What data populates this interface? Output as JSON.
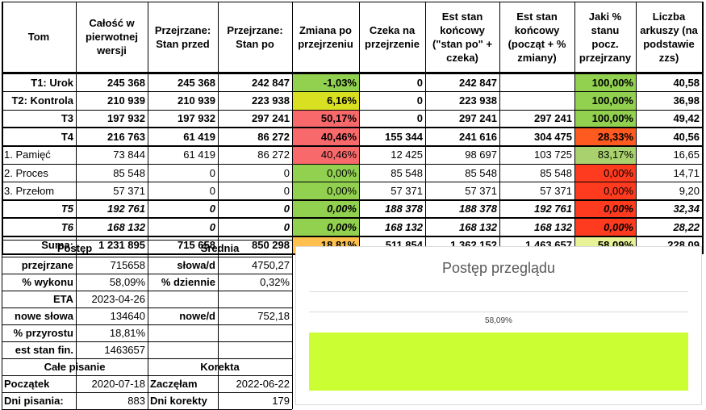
{
  "headers": [
    "Tom",
    "Całość w pierwotnej wersji",
    "Przejrzane: Stan przed",
    "Przejrzane: Stan po",
    "Zmiana po przejrzeniu",
    "Czeka na przejrzenie",
    "Est stan końcowy (\"stan po\" + czeka)",
    "Est stan końcowy (począt + % zmiany)",
    "Jaki % stanu pocz. przejrzany",
    "Liczba arkuszy (na podstawie zzs)"
  ],
  "rows": [
    {
      "cells": [
        "T1: Urok",
        "245 368",
        "245 368",
        "242 847",
        "-1,03%",
        "0",
        "242 847",
        "",
        "100,00%",
        "40,58"
      ],
      "style": "b",
      "colors": [
        "#92d050",
        "#92d050"
      ]
    },
    {
      "cells": [
        "T2: Kontrola",
        "210 939",
        "210 939",
        "223 938",
        "6,16%",
        "0",
        "223 938",
        "",
        "100,00%",
        "36,98"
      ],
      "style": "b",
      "colors": [
        "#d9e021",
        "#92d050"
      ]
    },
    {
      "cells": [
        "T3",
        "197 932",
        "197 932",
        "297 241",
        "50,17%",
        "0",
        "297 241",
        "297 241",
        "100,00%",
        "49,42"
      ],
      "style": "b",
      "colors": [
        "#f8696b",
        "#92d050"
      ]
    },
    {
      "cells": [
        "T4",
        "216 763",
        "61 419",
        "86 272",
        "40,46%",
        "155 344",
        "241 616",
        "304 475",
        "28,33%",
        "40,56"
      ],
      "style": "b",
      "colors": [
        "#f8696b",
        "#ff5a1f"
      ]
    },
    {
      "cells": [
        "1. Pamięć",
        "73 844",
        "61 419",
        "86 272",
        "40,46%",
        "12 425",
        "98 697",
        "103 725",
        "83,17%",
        "16,65"
      ],
      "style": "n",
      "colors": [
        "#f8696b",
        "#a9d16e"
      ]
    },
    {
      "cells": [
        "2. Proces",
        "85 548",
        "0",
        "0",
        "0,00%",
        "85 548",
        "85 548",
        "85 548",
        "0,00%",
        "14,71"
      ],
      "style": "n",
      "colors": [
        "#92d050",
        "#ff3b1f"
      ]
    },
    {
      "cells": [
        "3. Przełom",
        "57 371",
        "0",
        "0",
        "0,00%",
        "57 371",
        "57 371",
        "57 371",
        "0,00%",
        "9,20"
      ],
      "style": "n",
      "colors": [
        "#92d050",
        "#ff3b1f"
      ]
    },
    {
      "cells": [
        "T5",
        "192 761",
        "0",
        "0",
        "0,00%",
        "188 378",
        "188 378",
        "192 761",
        "0,00%",
        "32,34"
      ],
      "style": "bi",
      "colors": [
        "#92d050",
        "#ff3b1f"
      ]
    },
    {
      "cells": [
        "T6",
        "168 132",
        "0",
        "0",
        "0,00%",
        "168 132",
        "168 132",
        "168 132",
        "0,00%",
        "28,22"
      ],
      "style": "bi",
      "colors": [
        "#92d050",
        "#ff3b1f"
      ]
    },
    {
      "cells": [
        "Suma:",
        "1 231 895",
        "715 658",
        "850 298",
        "18,81%",
        "511 854",
        "1 362 152",
        "1 463 657",
        "58,09%",
        "228,09"
      ],
      "style": "b",
      "colors": [
        "#ffc04d",
        "#e8f296"
      ]
    }
  ],
  "progress": {
    "title": "Postęp",
    "rows": [
      {
        "label": "przejrzane",
        "value": "715658"
      },
      {
        "label": "% wykonu",
        "value": "58,09%"
      },
      {
        "label": "ETA",
        "value": "2023-04-26"
      },
      {
        "label": "nowe słowa",
        "value": "134640"
      },
      {
        "label": "% przyrostu",
        "value": "18,81%"
      },
      {
        "label": "est stan fin.",
        "value": "1463657"
      }
    ]
  },
  "average": {
    "title": "Średnia",
    "rows": [
      {
        "label": "słowa/d",
        "value": "4750,27"
      },
      {
        "label": "% dziennie",
        "value": "0,32%"
      },
      {
        "label": "",
        "value": ""
      },
      {
        "label": "nowe/d",
        "value": "752,18"
      }
    ]
  },
  "writing": {
    "title": "Całe pisanie",
    "label1": "Początek",
    "value1": "2020-07-18",
    "label2": "Dni pisania:",
    "value2": "883"
  },
  "correction": {
    "title": "Korekta",
    "label1": "Zaczęłam",
    "value1": "2022-06-22",
    "label2": "Dni korekty",
    "value2": "179"
  },
  "chart_data": {
    "type": "bar",
    "title": "Postęp przeglądu",
    "categories": [
      ""
    ],
    "values": [
      0.5809
    ],
    "data_labels": [
      "58,09%"
    ],
    "bar_color": "#ccff33",
    "xlim": [
      0,
      1
    ],
    "orientation": "horizontal"
  }
}
